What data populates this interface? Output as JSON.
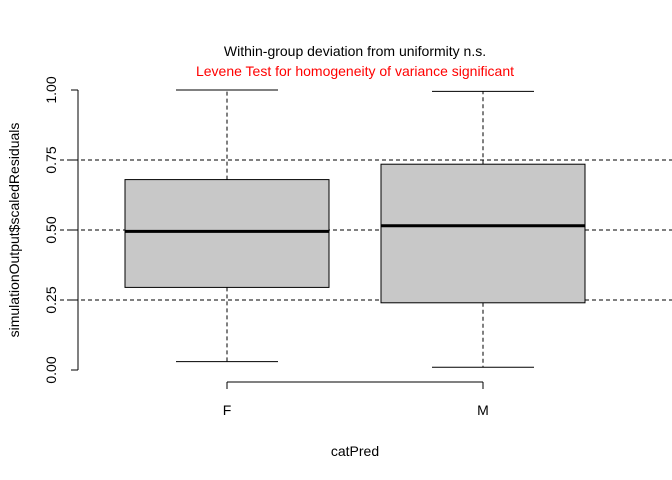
{
  "chart_data": {
    "type": "boxplot",
    "title": "Within-group deviation from uniformity n.s.",
    "subtitle": "Levene Test for homogeneity of variance significant",
    "subtitle_color": "#ff0000",
    "xlabel": "catPred",
    "ylabel": "simulationOutput$scaledResiduals",
    "ylim": [
      0,
      1
    ],
    "yticks": [
      "0.00",
      "0.25",
      "0.50",
      "0.75",
      "1.00"
    ],
    "reference_lines": [
      0.25,
      0.5,
      0.75
    ],
    "box_fill": "#c8c8c8",
    "categories": [
      "F",
      "M"
    ],
    "boxes": [
      {
        "category": "F",
        "whisker_low": 0.03,
        "q1": 0.295,
        "median": 0.495,
        "q3": 0.68,
        "whisker_high": 1.0
      },
      {
        "category": "M",
        "whisker_low": 0.01,
        "q1": 0.24,
        "median": 0.515,
        "q3": 0.735,
        "whisker_high": 0.995
      }
    ]
  }
}
